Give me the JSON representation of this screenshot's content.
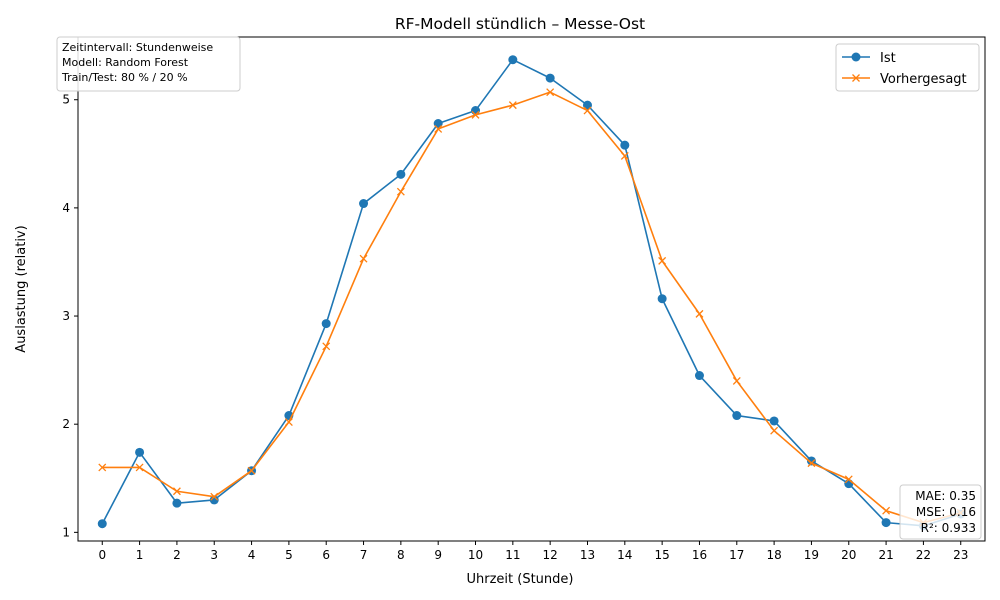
{
  "chart_data": {
    "type": "line",
    "title": "RF-Modell stündlich – Messe-Ost",
    "xlabel": "Uhrzeit (Stunde)",
    "ylabel": "Auslastung (relativ)",
    "x": [
      0,
      1,
      2,
      3,
      4,
      5,
      6,
      7,
      8,
      9,
      10,
      11,
      12,
      13,
      14,
      15,
      16,
      17,
      18,
      19,
      20,
      21,
      22,
      23
    ],
    "xlim": [
      -0.65,
      23.65
    ],
    "ylim": [
      0.92,
      5.58
    ],
    "yticks": [
      1,
      2,
      3,
      4,
      5
    ],
    "grid": false,
    "legend_position": "top-right",
    "series": [
      {
        "name": "Ist",
        "color": "#1f77b4",
        "marker": "circle",
        "values": [
          1.08,
          1.74,
          1.27,
          1.3,
          1.57,
          2.08,
          2.93,
          4.04,
          4.31,
          4.78,
          4.9,
          5.37,
          5.2,
          4.95,
          4.58,
          3.16,
          2.45,
          2.08,
          2.03,
          1.66,
          1.45,
          1.09,
          1.06,
          1.17
        ]
      },
      {
        "name": "Vorhergesagt",
        "color": "#ff7f0e",
        "marker": "x",
        "values": [
          1.6,
          1.6,
          1.38,
          1.33,
          1.57,
          2.02,
          2.72,
          3.53,
          4.15,
          4.73,
          4.86,
          4.95,
          5.07,
          4.9,
          4.48,
          3.51,
          3.02,
          2.4,
          1.94,
          1.64,
          1.49,
          1.2,
          1.09,
          1.18
        ]
      }
    ],
    "annotations": {
      "info_box": [
        "Zeitintervall: Stundenweise",
        "Modell: Random Forest",
        "Train/Test: 80 % / 20 %"
      ],
      "metrics_box": [
        "MAE: 0.35",
        "MSE: 0.16",
        "R²: 0.933"
      ]
    }
  }
}
